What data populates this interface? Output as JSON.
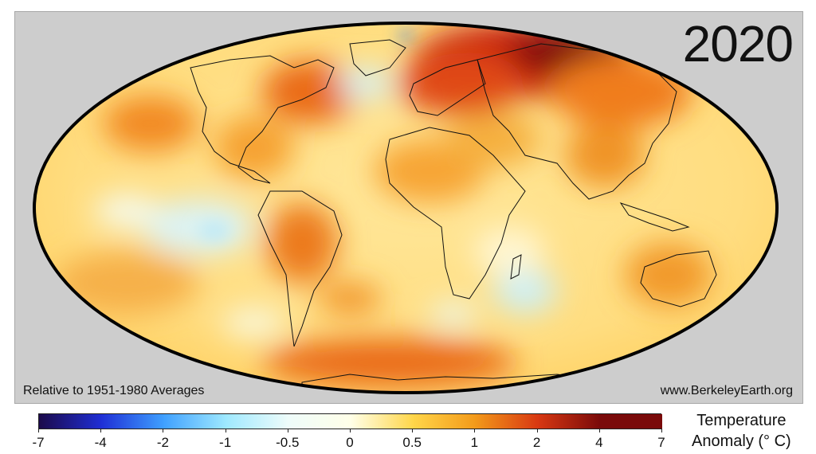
{
  "map": {
    "year": "2020",
    "caption_left": "Relative to 1951-1980 Averages",
    "caption_right": "www.BerkeleyEarth.org",
    "projection": "Mollweide",
    "ocean_background": "#cdcdcd"
  },
  "legend": {
    "title_line1": "Temperature",
    "title_line2": "Anomaly (° C)",
    "ticks": [
      "-7",
      "-4",
      "-2",
      "-1",
      "-0.5",
      "0",
      "0.5",
      "1",
      "2",
      "4",
      "7"
    ],
    "colors": [
      "#1c0a4a",
      "#1f2fd6",
      "#3fa0ff",
      "#9fe9ff",
      "#eefcfa",
      "#ffffe8",
      "#ffd64a",
      "#f39a1a",
      "#d83812",
      "#7a0a0a"
    ]
  }
}
